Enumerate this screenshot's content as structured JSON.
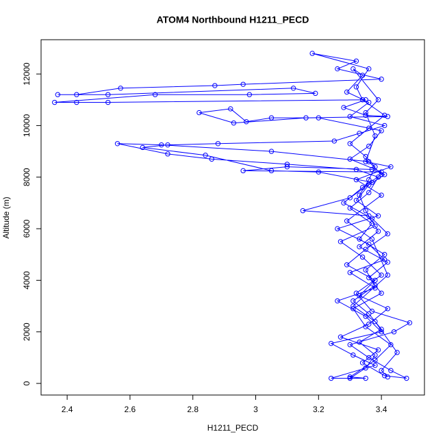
{
  "chart_data": {
    "type": "line",
    "title": "ATOM4 Northbound H1211_PECD",
    "x_label": "H1211_PECD",
    "y_label": "Altitude (m)",
    "color": "#0000ff",
    "markers": "open-circle",
    "xlim": [
      2.317,
      3.537
    ],
    "ylim": [
      -450,
      13330
    ],
    "xticks": [
      2.4,
      2.6,
      2.8,
      3.0,
      3.2,
      3.4
    ],
    "yticks": [
      0,
      2000,
      4000,
      6000,
      8000,
      10000,
      12000
    ],
    "x": [
      3.3,
      3.35,
      3.38,
      3.33,
      3.4,
      3.36,
      3.31,
      3.38,
      3.35,
      3.41,
      3.33,
      3.37,
      3.3,
      3.36,
      3.39,
      3.32,
      3.1,
      2.86,
      2.72,
      2.56,
      2.7,
      3.05,
      3.36,
      3.4,
      3.34,
      3.28,
      3.37,
      3.42,
      3.35,
      3.29,
      3.38,
      3.33,
      3.42,
      3.36,
      3.27,
      3.39,
      3.34,
      3.41,
      3.48,
      3.43,
      3.36,
      3.3,
      3.44,
      3.49,
      3.37,
      3.32,
      3.4,
      3.34,
      3.27,
      3.38,
      3.35,
      3.33,
      3.36,
      3.38,
      3.35,
      3.3,
      3.36,
      3.41,
      3.34,
      3.32,
      3.36,
      3.18,
      3.32,
      3.26,
      3.4,
      2.96,
      2.87,
      2.57,
      2.43,
      2.37,
      2.53,
      3.12,
      3.19,
      2.98,
      2.68,
      2.36,
      2.43,
      2.53,
      3.35,
      3.28,
      3.35,
      3.42,
      3.16,
      2.93,
      2.82,
      2.92,
      2.97,
      3.05,
      3.2,
      3.4,
      3.36,
      3.3,
      3.4,
      2.96,
      3.1,
      3.37,
      3.41,
      3.36,
      3.32,
      3.39,
      3.26,
      3.36,
      3.41,
      3.3,
      3.38,
      3.26,
      3.35,
      3.4,
      3.24,
      3.31,
      3.38,
      3.24,
      3.35,
      3.3,
      3.38,
      3.43,
      3.35,
      3.31,
      3.4,
      3.36,
      3.42,
      3.33,
      3.39,
      3.36,
      3.15,
      3.3,
      3.37,
      3.2,
      3.05,
      2.84,
      2.64,
      2.72,
      2.88,
      3.25,
      3.33,
      3.41,
      3.3,
      3.36,
      3.29,
      3.34,
      3.31,
      3.39,
      3.35,
      3.38,
      3.35,
      3.43,
      3.32,
      3.4,
      3.29,
      3.37,
      3.42,
      3.31,
      3.38,
      3.45,
      3.4,
      3.42
    ],
    "values": [
      200,
      600,
      1100,
      1600,
      2100,
      2700,
      3200,
      3800,
      4400,
      5000,
      5600,
      6200,
      6800,
      7400,
      8000,
      8300,
      8500,
      8700,
      8900,
      9300,
      9250,
      9000,
      8600,
      8100,
      7600,
      7000,
      6400,
      5800,
      5200,
      4600,
      4000,
      3400,
      2900,
      2300,
      1800,
      1300,
      800,
      300,
      200,
      500,
      1000,
      1500,
      2000,
      2350,
      2800,
      3500,
      4200,
      4900,
      5500,
      6100,
      6700,
      7300,
      7900,
      8400,
      8800,
      9300,
      9900,
      10400,
      11000,
      11500,
      12200,
      12800,
      12500,
      12200,
      11800,
      11600,
      11550,
      11450,
      11200,
      11200,
      11200,
      11450,
      11250,
      11200,
      11200,
      10900,
      10900,
      10900,
      11000,
      10700,
      10400,
      10350,
      10300,
      10100,
      10500,
      10650,
      10150,
      10300,
      10300,
      9800,
      9200,
      8700,
      8200,
      8250,
      8400,
      8300,
      8100,
      7700,
      7100,
      6500,
      6000,
      5400,
      4800,
      4300,
      3700,
      3200,
      2600,
      2000,
      1550,
      1100,
      700,
      200,
      200,
      250,
      900,
      1500,
      2200,
      2900,
      3500,
      4100,
      4700,
      5300,
      5900,
      6500,
      6700,
      7200,
      7800,
      8200,
      8250,
      8850,
      9150,
      9250,
      9300,
      9400,
      9700,
      10000,
      10350,
      10900,
      11300,
      11950,
      12200,
      11000,
      10500,
      9600,
      8600,
      8400,
      7900,
      7300,
      6300,
      5600,
      4200,
      3000,
      2400,
      1200,
      500,
      250
    ]
  }
}
